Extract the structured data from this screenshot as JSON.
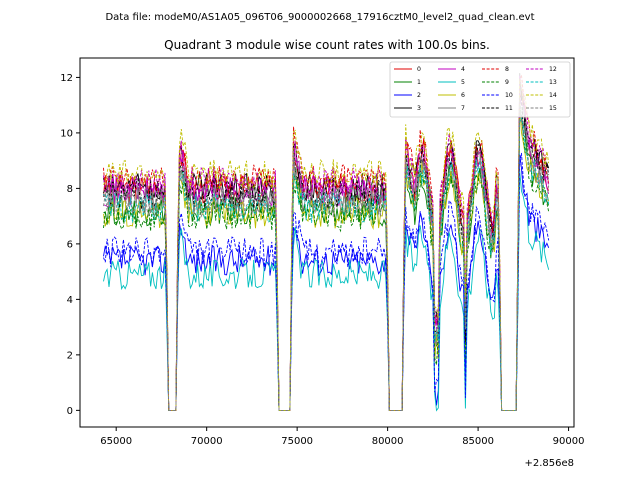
{
  "figure": {
    "suptitle": "Data file: modeM0/AS1A05_096T06_9000002668_17916cztM0_level2_quad_clean.evt"
  },
  "chart_data": {
    "type": "line",
    "title": "Quadrant 3 module wise count rates with 100.0s bins.",
    "xlabel": "",
    "ylabel": "",
    "x_offset_label": "+2.856e8",
    "xlim": [
      63000,
      90300
    ],
    "ylim": [
      -0.6,
      12.7
    ],
    "x_ticks": [
      65000,
      70000,
      75000,
      80000,
      85000,
      90000
    ],
    "x_tick_labels": [
      "65000",
      "70000",
      "75000",
      "80000",
      "85000",
      "90000"
    ],
    "y_ticks": [
      0,
      2,
      4,
      6,
      8,
      10,
      12
    ],
    "y_tick_labels": [
      "0",
      "2",
      "4",
      "6",
      "8",
      "10",
      "12"
    ],
    "bin_seconds": 100,
    "time_range": [
      64300,
      88900
    ],
    "gaps": [
      [
        67850,
        68350
      ],
      [
        73950,
        74650
      ],
      [
        80100,
        80850
      ],
      [
        86250,
        87150
      ]
    ],
    "legend": {
      "location": "upper right",
      "columns": 4
    },
    "series": [
      {
        "name": "0",
        "color": "#e00000",
        "dash": "solid",
        "level": 8.0
      },
      {
        "name": "1",
        "color": "#008000",
        "dash": "solid",
        "level": 7.2
      },
      {
        "name": "2",
        "color": "#0000ff",
        "dash": "solid",
        "level": 5.4
      },
      {
        "name": "3",
        "color": "#000000",
        "dash": "solid",
        "level": 8.0
      },
      {
        "name": "4",
        "color": "#c000c0",
        "dash": "solid",
        "level": 7.9
      },
      {
        "name": "5",
        "color": "#00bfbf",
        "dash": "solid",
        "level": 4.9
      },
      {
        "name": "6",
        "color": "#bfbf00",
        "dash": "solid",
        "level": 7.1
      },
      {
        "name": "7",
        "color": "#808080",
        "dash": "solid",
        "level": 7.6
      },
      {
        "name": "8",
        "color": "#e00000",
        "dash": "dashed",
        "level": 8.3
      },
      {
        "name": "9",
        "color": "#008000",
        "dash": "dashed",
        "level": 7.0
      },
      {
        "name": "10",
        "color": "#0000ff",
        "dash": "dashed",
        "level": 5.7
      },
      {
        "name": "11",
        "color": "#000000",
        "dash": "dashed",
        "level": 7.8
      },
      {
        "name": "12",
        "color": "#c000c0",
        "dash": "dashed",
        "level": 8.2
      },
      {
        "name": "13",
        "color": "#00bfbf",
        "dash": "dashed",
        "level": 7.3
      },
      {
        "name": "14",
        "color": "#bfbf00",
        "dash": "dashed",
        "level": 8.5
      },
      {
        "name": "15",
        "color": "#808080",
        "dash": "dashed",
        "level": 7.5
      }
    ]
  }
}
